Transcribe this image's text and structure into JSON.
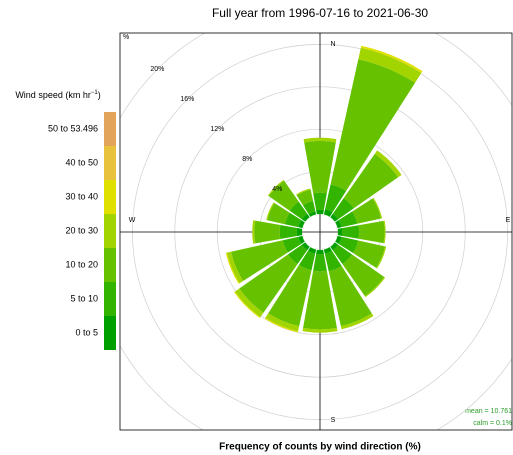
{
  "chart_data": {
    "type": "windrose",
    "title": "Full year from 1996-07-16 to 2021-06-30",
    "xlabel": "Frequency of counts by wind direction (%)",
    "legend_title": [
      "Wind speed (km hr",
      "−1",
      ")"
    ],
    "runit": "%",
    "x": [
      0,
      22.5,
      45,
      67.5,
      90,
      112.5,
      135,
      157.5,
      180,
      202.5,
      225,
      247.5,
      270,
      292.5,
      315,
      337.5
    ],
    "compass": [
      {
        "value": 0,
        "label": "N"
      },
      {
        "value": 90,
        "label": "E"
      },
      {
        "value": 180,
        "label": "S"
      },
      {
        "value": 270,
        "label": "W"
      }
    ],
    "rlim": [
      0,
      20
    ],
    "rticks": [
      {
        "value": 4,
        "label": "4%"
      },
      {
        "value": 8,
        "label": "8%"
      },
      {
        "value": 12,
        "label": "12%"
      },
      {
        "value": 16,
        "label": "16%"
      },
      {
        "value": 20,
        "label": "20%"
      }
    ],
    "series": [
      {
        "name": "0 to 5",
        "color": "#00a000",
        "values": [
          0.4,
          0.5,
          0.4,
          0.4,
          0.4,
          0.4,
          0.4,
          0.4,
          0.4,
          0.4,
          0.4,
          0.4,
          0.5,
          0.4,
          0.4,
          0.3
        ]
      },
      {
        "name": "5 to 10",
        "color": "#33b400",
        "values": [
          1.6,
          2.4,
          1.8,
          1.5,
          1.6,
          1.6,
          1.6,
          1.7,
          1.6,
          1.6,
          1.6,
          1.5,
          1.6,
          1.3,
          1.4,
          1.0
        ]
      },
      {
        "name": "10 to 20",
        "color": "#66c200",
        "values": [
          4.9,
          12.1,
          5.1,
          2.3,
          2.4,
          2.6,
          3.7,
          5.3,
          5.5,
          5.4,
          5.6,
          5.0,
          2.4,
          1.7,
          2.4,
          1.1
        ]
      },
      {
        "name": "20 to 30",
        "color": "#a2d400",
        "values": [
          0.3,
          1.1,
          0.4,
          0.1,
          0.1,
          0.1,
          0.1,
          0.3,
          0.3,
          0.5,
          0.5,
          0.4,
          0.2,
          0.1,
          0.1,
          0.1
        ]
      },
      {
        "name": "30 to 40",
        "color": "#e0e000",
        "values": [
          0,
          0.2,
          0,
          0,
          0,
          0,
          0,
          0,
          0,
          0.1,
          0.1,
          0.1,
          0,
          0,
          0,
          0
        ]
      },
      {
        "name": "40 to 50",
        "color": "#e8c23c",
        "values": [
          0,
          0,
          0,
          0,
          0,
          0,
          0,
          0,
          0,
          0,
          0,
          0,
          0,
          0,
          0,
          0
        ]
      },
      {
        "name": "50 to 53.496",
        "color": "#e2a45a",
        "values": [
          0,
          0,
          0,
          0,
          0,
          0,
          0,
          0,
          0,
          0,
          0,
          0,
          0,
          0,
          0,
          0
        ]
      }
    ],
    "annotations": [
      "mean = 10.761",
      "calm = 0.1%"
    ]
  }
}
